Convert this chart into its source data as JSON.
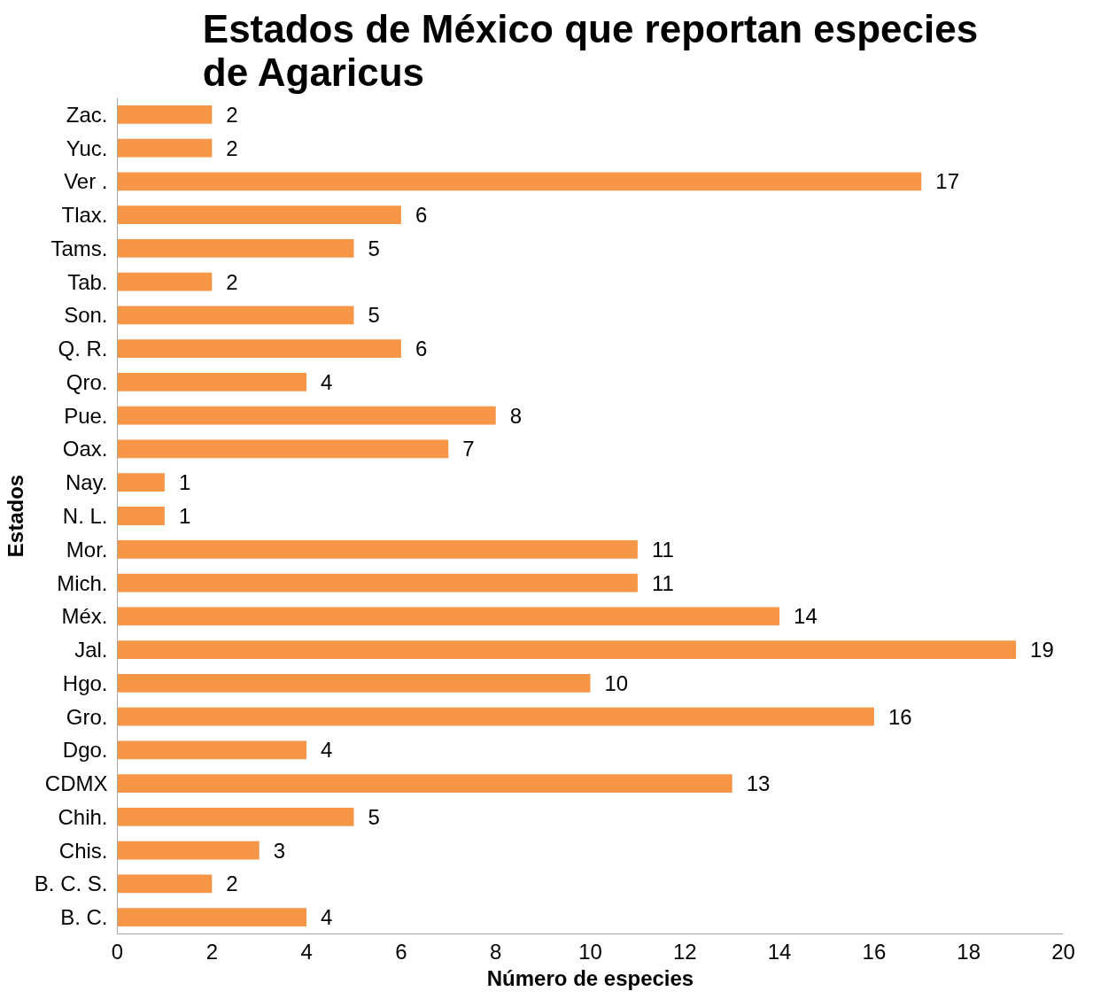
{
  "chart_data": {
    "type": "bar",
    "orientation": "horizontal",
    "title": "Estados de México que reportan especies\nde Agaricus",
    "xlabel": "Número de especies",
    "ylabel": "Estados",
    "categories": [
      "Zac.",
      "Yuc.",
      "Ver .",
      "Tlax.",
      "Tams.",
      "Tab.",
      "Son.",
      "Q. R.",
      "Qro.",
      "Pue.",
      "Oax.",
      "Nay.",
      "N. L.",
      "Mor.",
      "Mich.",
      "Méx.",
      "Jal.",
      "Hgo.",
      "Gro.",
      "Dgo.",
      "CDMX",
      "Chih.",
      "Chis.",
      "B. C. S.",
      "B. C."
    ],
    "values": [
      2,
      2,
      17,
      6,
      5,
      2,
      5,
      6,
      4,
      8,
      7,
      1,
      1,
      11,
      11,
      14,
      19,
      10,
      16,
      4,
      13,
      5,
      3,
      2,
      4
    ],
    "color": "#f79646",
    "xlim": [
      0,
      20
    ],
    "xticks": [
      0,
      2,
      4,
      6,
      8,
      10,
      12,
      14,
      16,
      18,
      20
    ],
    "grid": false,
    "data_labels": true
  }
}
